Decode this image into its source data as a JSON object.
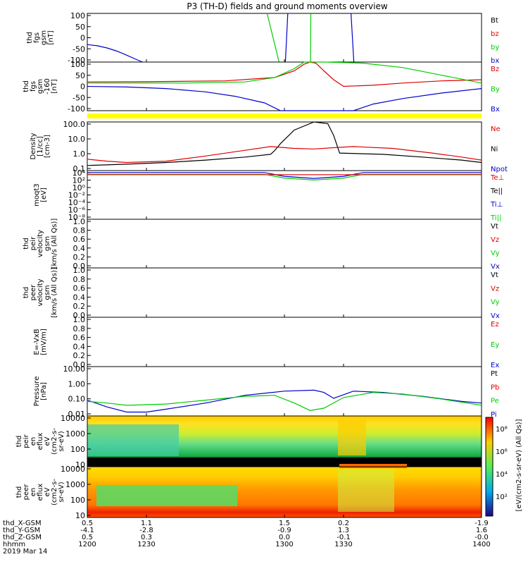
{
  "title": "P3 (TH-D) fields and ground moments overview",
  "colors": {
    "black": "#000000",
    "red": "#dd0000",
    "green": "#00cc00",
    "blue": "#0000cc",
    "yellow": "#ffff00"
  },
  "chart_data": [
    {
      "type": "line",
      "panel": "fgs",
      "ylabel": [
        "thd",
        "fgs",
        "gsm",
        "[nT]"
      ],
      "yticks": [
        "100",
        "50",
        "0",
        "-50",
        "-100"
      ],
      "ylim": [
        -100,
        100
      ],
      "legend": [
        {
          "label": "Bt",
          "color": "black"
        },
        {
          "label": "bz",
          "color": "red"
        },
        {
          "label": "by",
          "color": "green"
        },
        {
          "label": "bx",
          "color": "blue"
        }
      ],
      "series": [
        {
          "name": "bx",
          "color": "blue",
          "x": [
            1200,
            1205,
            1210,
            1215,
            1220,
            1225,
            1228
          ],
          "y": [
            -28,
            -33,
            -42,
            -55,
            -72,
            -90,
            -100
          ]
        },
        {
          "name": "bx",
          "color": "blue",
          "x": [
            1300.5,
            1301.7
          ],
          "y": [
            -100,
            100
          ]
        },
        {
          "name": "bx",
          "color": "blue",
          "x": [
            1333.8,
            1335.2
          ],
          "y": [
            100,
            -100
          ]
        },
        {
          "name": "by",
          "color": "green",
          "x": [
            1291.2,
            1297.3
          ],
          "y": [
            100,
            -100
          ]
        },
        {
          "name": "by",
          "color": "green",
          "x": [
            1313.2,
            1313.4
          ],
          "y": [
            -100,
            100
          ]
        }
      ]
    },
    {
      "type": "line",
      "panel": "fgs_zoom",
      "ylabel": [
        "thd",
        "fgs",
        "gsm",
        "-160",
        "[nT]"
      ],
      "yticks": [
        "100",
        "50",
        "0",
        "-50",
        "-100"
      ],
      "ylim": [
        -120,
        100
      ],
      "legend": [
        {
          "label": "Bz",
          "color": "red"
        },
        {
          "label": "By",
          "color": "green"
        },
        {
          "label": "Bx",
          "color": "blue"
        }
      ],
      "series": [
        {
          "name": "Bz",
          "color": "red",
          "x": [
            1200,
            1230,
            1270,
            1295,
            1305,
            1310,
            1313,
            1316,
            1320,
            1325,
            1330,
            1345,
            1360,
            1380,
            1400
          ],
          "y": [
            10,
            11,
            15,
            30,
            60,
            90,
            100,
            95,
            60,
            20,
            -10,
            -5,
            5,
            15,
            20
          ]
        },
        {
          "name": "By",
          "color": "green",
          "x": [
            1200,
            1220,
            1250,
            1280,
            1295,
            1305,
            1310,
            1320,
            1340,
            1360,
            1380,
            1400
          ],
          "y": [
            5,
            5,
            5,
            10,
            30,
            70,
            100,
            100,
            95,
            75,
            40,
            5
          ]
        },
        {
          "name": "Bx",
          "color": "blue",
          "x": [
            1200,
            1220,
            1240,
            1260,
            1275,
            1290,
            1298,
            1335,
            1345,
            1360,
            1380,
            1400
          ],
          "y": [
            -10,
            -13,
            -20,
            -35,
            -55,
            -85,
            -120,
            -120,
            -90,
            -65,
            -40,
            -20
          ]
        }
      ]
    },
    {
      "type": "line",
      "panel": "density",
      "ylabel": [
        "Density",
        "[1/cc]",
        "[cm-3]"
      ],
      "log": true,
      "yticks": [
        "100.0",
        "10.0",
        "1.0",
        "0.1"
      ],
      "ylim": [
        0.05,
        200
      ],
      "legend": [
        {
          "label": "Ne",
          "color": "red"
        },
        {
          "label": "Ni",
          "color": "black"
        },
        {
          "label": "Npot",
          "color": "blue"
        }
      ],
      "series": [
        {
          "name": "Ni",
          "color": "black",
          "x": [
            1200,
            1220,
            1240,
            1260,
            1280,
            1293,
            1295,
            1298,
            1305,
            1315,
            1322,
            1325,
            1328,
            1350,
            1370,
            1390,
            1400
          ],
          "y": [
            0.12,
            0.15,
            0.2,
            0.3,
            0.5,
            0.8,
            1.5,
            5,
            50,
            250,
            150,
            20,
            1.0,
            0.8,
            0.5,
            0.3,
            0.2
          ]
        },
        {
          "name": "Ne",
          "color": "red",
          "x": [
            1200,
            1210,
            1220,
            1240,
            1260,
            1280,
            1293,
            1305,
            1315,
            1325,
            1335,
            1355,
            1375,
            1390,
            1400
          ],
          "y": [
            0.35,
            0.25,
            0.2,
            0.25,
            0.6,
            1.6,
            3,
            2.2,
            2,
            2.5,
            3,
            2.2,
            1.0,
            0.5,
            0.3
          ]
        }
      ]
    },
    {
      "type": "line",
      "panel": "temperature",
      "ylabel": [
        "moqt3",
        "[eV]"
      ],
      "log": true,
      "yticks": [
        "10⁴",
        "10²",
        "10⁰",
        "10⁻²",
        "10⁻⁴",
        "10⁻⁶",
        "10⁻⁸"
      ],
      "ylim": [
        1e-09,
        10000.0
      ],
      "legend": [
        {
          "label": "Te⊥",
          "color": "red"
        },
        {
          "label": "Te||",
          "color": "black"
        },
        {
          "label": "Ti⊥",
          "color": "blue"
        },
        {
          "label": "Ti||",
          "color": "green"
        }
      ],
      "series": [
        {
          "name": "Ti",
          "color": "blue",
          "x": [
            1200,
            1290,
            1300,
            1315,
            1330,
            1340,
            1400
          ],
          "y": [
            3000,
            3000,
            300,
            80,
            300,
            3000,
            3000
          ]
        },
        {
          "name": "Te",
          "color": "green",
          "x": [
            1200,
            1290,
            1300,
            1315,
            1330,
            1340,
            1400
          ],
          "y": [
            1000,
            1000,
            100,
            30,
            100,
            1000,
            1000
          ]
        },
        {
          "name": "Te⊥",
          "color": "red",
          "x": [
            1200,
            1400
          ],
          "y": [
            800,
            800
          ]
        }
      ]
    },
    {
      "type": "line",
      "panel": "peir_velocity",
      "ylabel": [
        "thd",
        "peir",
        "velocity",
        "gsm",
        "[km/s (All Qs)]"
      ],
      "yticks": [
        "1.0",
        "0.8",
        "0.6",
        "0.4",
        "0.2",
        "0.0"
      ],
      "ylim": [
        0,
        1
      ],
      "legend": [
        {
          "label": "Vt",
          "color": "black"
        },
        {
          "label": "Vz",
          "color": "red"
        },
        {
          "label": "Vy",
          "color": "green"
        },
        {
          "label": "Vx",
          "color": "blue"
        }
      ],
      "series": []
    },
    {
      "type": "line",
      "panel": "peer_velocity",
      "ylabel": [
        "thd",
        "peer",
        "velocity",
        "gsm",
        "[km/s (All Qs)]"
      ],
      "yticks": [
        "1.0",
        "0.8",
        "0.6",
        "0.4",
        "0.2",
        "0.0"
      ],
      "ylim": [
        0,
        1
      ],
      "legend": [
        {
          "label": "Vt",
          "color": "black"
        },
        {
          "label": "Vz",
          "color": "red"
        },
        {
          "label": "Vy",
          "color": "green"
        },
        {
          "label": "Vx",
          "color": "blue"
        }
      ],
      "series": []
    },
    {
      "type": "line",
      "panel": "efield",
      "ylabel": [
        "E=-VxB",
        "[mV/m]"
      ],
      "yticks": [
        "1.0",
        "0.8",
        "0.6",
        "0.4",
        "0.2",
        "0.0"
      ],
      "ylim": [
        0,
        1
      ],
      "legend": [
        {
          "label": "Ez",
          "color": "red"
        },
        {
          "label": "Ey",
          "color": "green"
        },
        {
          "label": "Ex",
          "color": "blue"
        }
      ],
      "series": []
    },
    {
      "type": "line",
      "panel": "pressure",
      "ylabel": [
        "Pressure",
        "[nPa]"
      ],
      "log": true,
      "yticks": [
        "10.00",
        "1.00",
        "0.10",
        "0.01"
      ],
      "ylim": [
        0.003,
        20
      ],
      "legend": [
        {
          "label": "Pt",
          "color": "black"
        },
        {
          "label": "Pb",
          "color": "red"
        },
        {
          "label": "Pe",
          "color": "green"
        },
        {
          "label": "Pi",
          "color": "blue"
        }
      ],
      "series": [
        {
          "name": "Pi",
          "color": "blue",
          "x": [
            1200,
            1210,
            1220,
            1230,
            1240,
            1260,
            1280,
            1300,
            1315,
            1320,
            1325,
            1335,
            1350,
            1370,
            1390,
            1400
          ],
          "y": [
            0.05,
            0.015,
            0.006,
            0.006,
            0.01,
            0.03,
            0.12,
            0.25,
            0.3,
            0.2,
            0.07,
            0.25,
            0.2,
            0.1,
            0.04,
            0.03
          ]
        },
        {
          "name": "Pe",
          "color": "green",
          "x": [
            1200,
            1210,
            1220,
            1240,
            1260,
            1280,
            1295,
            1305,
            1313,
            1320,
            1330,
            1345,
            1360,
            1380,
            1400
          ],
          "y": [
            0.04,
            0.03,
            0.02,
            0.025,
            0.05,
            0.1,
            0.12,
            0.03,
            0.008,
            0.012,
            0.08,
            0.2,
            0.15,
            0.06,
            0.02
          ]
        }
      ]
    },
    {
      "type": "heatmap",
      "panel": "peir_spectrogram",
      "ylabel": [
        "thd",
        "peir",
        "en",
        "eflux",
        "eV",
        "(cm2-s-",
        "sr-eV)"
      ],
      "log": true,
      "yticks": [
        "10000",
        "1000",
        "100",
        "10"
      ],
      "ylim": [
        5,
        30000
      ]
    },
    {
      "type": "heatmap",
      "panel": "peer_spectrogram",
      "ylabel": [
        "thd",
        "peer",
        "en",
        "eflux",
        "eV",
        "(cm2-s-",
        "sr-eV)"
      ],
      "log": true,
      "yticks": [
        "10000",
        "1000",
        "100",
        "10"
      ],
      "ylim": [
        5,
        30000
      ]
    }
  ],
  "colorbar": {
    "label": "[eV/(cm2-s-sr-eV) (All Qs)]",
    "ticks": [
      "10⁸",
      "10⁶",
      "10⁴",
      "10²"
    ]
  },
  "footer": {
    "rows": [
      {
        "label": "thd_X-GSM",
        "values": [
          "0.5",
          "1.1",
          "1.5",
          "0.2",
          "-1.9"
        ]
      },
      {
        "label": "thd_Y-GSM",
        "values": [
          "-4.1",
          "-2.8",
          "-0.9",
          "1.3",
          "1.6"
        ]
      },
      {
        "label": "thd_Z-GSM",
        "values": [
          "0.5",
          "0.3",
          "0.0",
          "-0.1",
          "-0.0"
        ]
      },
      {
        "label": "hhmm",
        "values": [
          "1200",
          "1230",
          "1300",
          "1330",
          "1400"
        ]
      }
    ],
    "date": "2019 Mar 14"
  }
}
